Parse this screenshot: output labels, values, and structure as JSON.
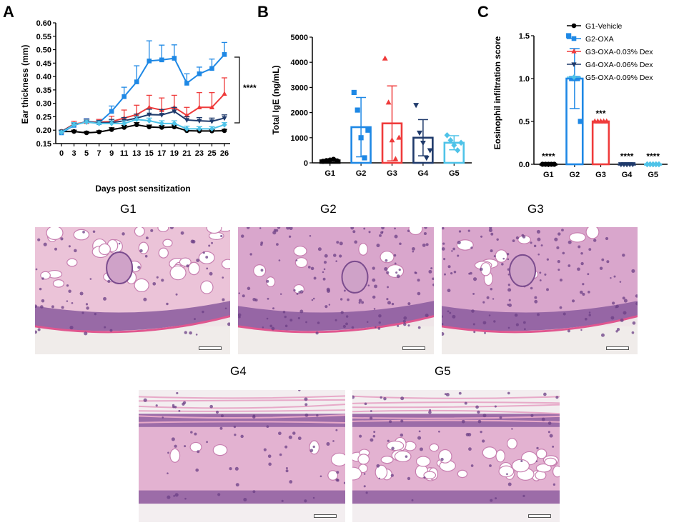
{
  "panels": {
    "A": "A",
    "B": "B",
    "C": "C"
  },
  "chart_data": [
    {
      "type": "line",
      "panel": "A",
      "ylabel": "Ear thickness (mm)",
      "xlabel": "Days post sensitization",
      "x": [
        0,
        3,
        5,
        7,
        9,
        11,
        13,
        15,
        17,
        19,
        21,
        23,
        25,
        26
      ],
      "xticks": [
        "0",
        "3",
        "5",
        "7",
        "9",
        "11",
        "13",
        "15",
        "17",
        "19",
        "21",
        "23",
        "25",
        "26"
      ],
      "ylim": [
        0.15,
        0.6
      ],
      "yticks": [
        "0.15",
        "0.20",
        "0.25",
        "0.30",
        "0.35",
        "0.40",
        "0.45",
        "0.50",
        "0.55",
        "0.60"
      ],
      "series": [
        {
          "name": "G1-Vehicle",
          "color": "#000000",
          "marker": "circle",
          "values": [
            0.195,
            0.195,
            0.19,
            0.193,
            0.202,
            0.21,
            0.22,
            0.212,
            0.21,
            0.212,
            0.198,
            0.197,
            0.197,
            0.198
          ],
          "errors": [
            0.005,
            0.005,
            0.005,
            0.005,
            0.007,
            0.008,
            0.008,
            0.007,
            0.007,
            0.007,
            0.006,
            0.005,
            0.005,
            0.005
          ]
        },
        {
          "name": "G2-OXA",
          "color": "#1e88e5",
          "marker": "square",
          "values": [
            0.19,
            0.218,
            0.233,
            0.228,
            0.27,
            0.325,
            0.38,
            0.458,
            0.462,
            0.468,
            0.375,
            0.41,
            0.43,
            0.482
          ],
          "errors": [
            0.01,
            0.01,
            0.01,
            0.012,
            0.02,
            0.035,
            0.06,
            0.075,
            0.055,
            0.05,
            0.035,
            0.025,
            0.035,
            0.045
          ]
        },
        {
          "name": "G3-OXA-0.03% Dex",
          "color": "#ef3b3b",
          "marker": "triangle-up",
          "values": [
            0.195,
            0.223,
            0.23,
            0.23,
            0.232,
            0.245,
            0.258,
            0.285,
            0.275,
            0.285,
            0.255,
            0.285,
            0.285,
            0.335
          ],
          "errors": [
            0.005,
            0.01,
            0.01,
            0.01,
            0.02,
            0.03,
            0.035,
            0.045,
            0.045,
            0.045,
            0.03,
            0.055,
            0.055,
            0.06
          ]
        },
        {
          "name": "G4-OXA-0.06% Dex",
          "color": "#1f3a6b",
          "marker": "triangle-down",
          "values": [
            0.195,
            0.22,
            0.23,
            0.228,
            0.228,
            0.235,
            0.245,
            0.258,
            0.257,
            0.27,
            0.238,
            0.235,
            0.233,
            0.245
          ],
          "errors": [
            0.005,
            0.008,
            0.008,
            0.008,
            0.012,
            0.012,
            0.015,
            0.02,
            0.02,
            0.015,
            0.012,
            0.012,
            0.012,
            0.012
          ]
        },
        {
          "name": "G5-OXA-0.09% Dex",
          "color": "#4fc3e8",
          "marker": "diamond",
          "values": [
            0.192,
            0.22,
            0.23,
            0.225,
            0.225,
            0.225,
            0.24,
            0.235,
            0.225,
            0.225,
            0.205,
            0.205,
            0.205,
            0.22
          ],
          "errors": [
            0.005,
            0.008,
            0.008,
            0.008,
            0.01,
            0.01,
            0.01,
            0.01,
            0.01,
            0.01,
            0.01,
            0.008,
            0.008,
            0.008
          ]
        }
      ],
      "annotations": [
        {
          "text": "****"
        }
      ]
    },
    {
      "type": "bar",
      "panel": "B",
      "ylabel": "Total IgE (ng/mL)",
      "categories": [
        "G1",
        "G2",
        "G3",
        "G4",
        "G5"
      ],
      "values": [
        100,
        1420,
        1570,
        1000,
        800
      ],
      "errors": [
        30,
        1180,
        1490,
        720,
        280
      ],
      "points": [
        [
          60,
          90,
          110,
          140,
          80
        ],
        [
          2800,
          2100,
          1000,
          200,
          1300
        ],
        [
          4150,
          2400,
          900,
          150,
          1000
        ],
        [
          2300,
          1200,
          800,
          200,
          500
        ],
        [
          1100,
          900,
          700,
          500,
          800
        ]
      ],
      "colors": [
        "#000000",
        "#1e88e5",
        "#ef3b3b",
        "#1f3a6b",
        "#4fc3e8"
      ],
      "markers": [
        "circle",
        "square",
        "triangle-up",
        "triangle-down",
        "diamond"
      ],
      "ylim": [
        0,
        5000
      ],
      "yticks": [
        "0",
        "1000",
        "2000",
        "3000",
        "4000",
        "5000"
      ]
    },
    {
      "type": "bar",
      "panel": "C",
      "ylabel": "Eosinophil infiltration score",
      "categories": [
        "G1",
        "G2",
        "G3",
        "G4",
        "G5"
      ],
      "values": [
        0,
        1.0,
        0.5,
        0,
        0
      ],
      "errors": [
        0,
        0.35,
        0,
        0,
        0
      ],
      "points": [
        [
          0,
          0,
          0,
          0,
          0
        ],
        [
          1.5,
          1.0,
          1.0,
          1.0,
          0.5
        ],
        [
          0.5,
          0.5,
          0.5,
          0.5,
          0.5
        ],
        [
          0,
          0,
          0,
          0,
          0
        ],
        [
          0,
          0,
          0,
          0,
          0
        ]
      ],
      "colors": [
        "#000000",
        "#1e88e5",
        "#ef3b3b",
        "#1f3a6b",
        "#4fc3e8"
      ],
      "markers": [
        "circle",
        "square",
        "triangle-up",
        "triangle-down",
        "diamond"
      ],
      "ylim": [
        0,
        1.5
      ],
      "yticks": [
        "0.0",
        "0.5",
        "1.0",
        "1.5"
      ],
      "significance": [
        "****",
        "",
        "***",
        "****",
        "****"
      ]
    }
  ],
  "histology": [
    {
      "label": "G1",
      "style": "adipose-rich"
    },
    {
      "label": "G2",
      "style": "inflamed"
    },
    {
      "label": "G3",
      "style": "inflamed"
    },
    {
      "label": "G4",
      "style": "layered"
    },
    {
      "label": "G5",
      "style": "adipose-rich"
    }
  ]
}
